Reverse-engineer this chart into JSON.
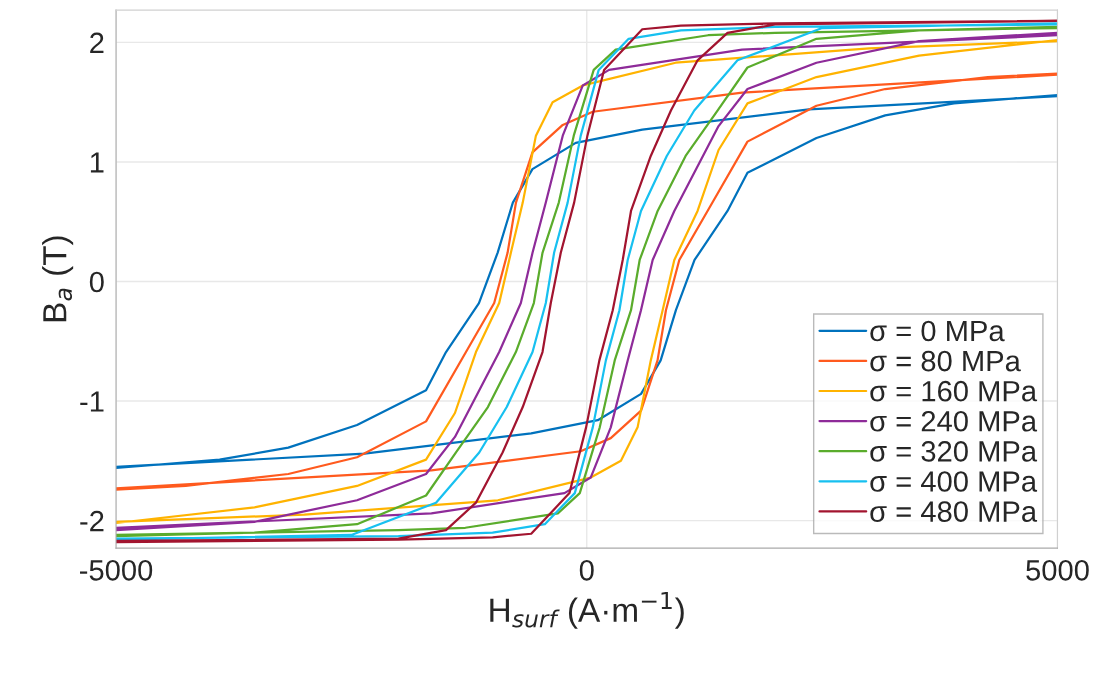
{
  "chart_data": {
    "type": "line",
    "xlabel": "H$_{surf}$ (A·m$^{−1}$)",
    "ylabel": "B$_{a}$ (T)",
    "xlim": [
      -5000,
      5000
    ],
    "ylim": [
      -2.23,
      2.27
    ],
    "xticks": [
      -5000,
      0,
      5000
    ],
    "yticks": [
      -2,
      -1,
      0,
      1,
      2
    ],
    "grid": true,
    "legend": "bottom right",
    "line_style": "solid",
    "marker": "none",
    "series": [
      {
        "name": "σ = 0 MPa",
        "color": "#0072bd",
        "x": [
          -5000,
          -2360,
          -590,
          117,
          577,
          785,
          947,
          1145,
          1495,
          1707,
          2440,
          3170,
          3900,
          5000,
          5000,
          2360,
          590,
          -117,
          -577,
          -785,
          -947,
          -1145,
          -1495,
          -1707,
          -2440,
          -3170,
          -3900,
          -5000
        ],
        "values": [
          -1.55,
          -1.44,
          -1.27,
          -1.16,
          -0.94,
          -0.66,
          -0.24,
          0.18,
          0.59,
          0.91,
          1.2,
          1.39,
          1.49,
          1.56,
          1.55,
          1.44,
          1.27,
          1.16,
          0.94,
          0.66,
          0.24,
          -0.18,
          -0.59,
          -0.91,
          -1.2,
          -1.39,
          -1.49,
          -1.56
        ]
      },
      {
        "name": "σ = 80 MPa",
        "color": "#ff5a1e",
        "x": [
          -5000,
          -1650,
          -64,
          255,
          577,
          752,
          841,
          983,
          1283,
          1707,
          2440,
          3170,
          4260,
          5000,
          5000,
          1650,
          64,
          -255,
          -577,
          -752,
          -841,
          -983,
          -1283,
          -1707,
          -2440,
          -3170,
          -4260,
          -5000
        ],
        "values": [
          -1.73,
          -1.58,
          -1.42,
          -1.31,
          -1.08,
          -0.66,
          -0.24,
          0.18,
          0.59,
          1.17,
          1.47,
          1.61,
          1.71,
          1.74,
          1.73,
          1.58,
          1.42,
          1.31,
          1.08,
          0.66,
          0.24,
          -0.18,
          -0.59,
          -1.17,
          -1.47,
          -1.61,
          -1.71,
          -1.74
        ]
      },
      {
        "name": "σ = 160 MPa",
        "color": "#ffb300",
        "x": [
          -5000,
          -3000,
          -944,
          42,
          363,
          540,
          680,
          806,
          930,
          1177,
          1400,
          1707,
          2440,
          3530,
          5000,
          5000,
          3000,
          944,
          -42,
          -363,
          -540,
          -680,
          -806,
          -930,
          -1177,
          -1400,
          -1707,
          -2440,
          -3530,
          -5000
        ],
        "values": [
          -2.01,
          -1.95,
          -1.83,
          -1.64,
          -1.5,
          -1.22,
          -0.66,
          -0.24,
          0.18,
          0.59,
          1.1,
          1.49,
          1.71,
          1.89,
          2.02,
          2.01,
          1.95,
          1.83,
          1.64,
          1.5,
          1.22,
          0.66,
          0.24,
          -0.18,
          -0.59,
          -1.1,
          -1.49,
          -1.71,
          -1.89,
          -2.02
        ]
      },
      {
        "name": "σ = 240 MPa",
        "color": "#8e2b99",
        "x": [
          -5000,
          -1650,
          -237,
          42,
          255,
          435,
          576,
          700,
          930,
          1400,
          1707,
          2440,
          3530,
          5000,
          5000,
          1650,
          237,
          -42,
          -255,
          -435,
          -576,
          -700,
          -930,
          -1400,
          -1707,
          -2440,
          -3530,
          -5000
        ],
        "values": [
          -2.06,
          -1.94,
          -1.77,
          -1.64,
          -1.22,
          -0.66,
          -0.24,
          0.18,
          0.59,
          1.3,
          1.61,
          1.83,
          2.01,
          2.08,
          2.06,
          1.94,
          1.77,
          1.64,
          1.22,
          0.66,
          0.24,
          -0.18,
          -0.59,
          -1.3,
          -1.61,
          -1.83,
          -2.01,
          -2.08
        ]
      },
      {
        "name": "σ = 320 MPa",
        "color": "#5aac2c",
        "x": [
          -5000,
          -2000,
          -1290,
          -307,
          -74,
          138,
          297,
          470,
          562,
          753,
          1050,
          1389,
          1707,
          2440,
          3530,
          5000,
          5000,
          2000,
          1290,
          307,
          74,
          -138,
          -297,
          -470,
          -562,
          -753,
          -1050,
          -1389,
          -1707,
          -2440,
          -3530,
          -5000
        ],
        "values": [
          -2.12,
          -2.08,
          -2.06,
          -1.94,
          -1.77,
          -1.22,
          -0.66,
          -0.24,
          0.18,
          0.59,
          1.05,
          1.43,
          1.79,
          2.03,
          2.1,
          2.13,
          2.12,
          2.08,
          2.06,
          1.94,
          1.77,
          1.22,
          0.66,
          0.24,
          -0.18,
          -0.59,
          -1.05,
          -1.43,
          -1.79,
          -2.03,
          -2.1,
          -2.13
        ]
      },
      {
        "name": "σ = 400 MPa",
        "color": "#17c0f0",
        "x": [
          -5000,
          -2000,
          -1000,
          -445,
          -127,
          64,
          203,
          347,
          435,
          576,
          850,
          1142,
          1601,
          2500,
          5000,
          5000,
          2000,
          1000,
          445,
          127,
          -64,
          -203,
          -347,
          -435,
          -576,
          -850,
          -1142,
          -1601,
          -2500,
          -5000
        ],
        "values": [
          -2.15,
          -2.13,
          -2.1,
          -2.03,
          -1.77,
          -1.22,
          -0.66,
          -0.24,
          0.18,
          0.59,
          1.05,
          1.43,
          1.85,
          2.12,
          2.16,
          2.15,
          2.13,
          2.1,
          2.03,
          1.77,
          1.22,
          0.66,
          0.24,
          -0.18,
          -0.59,
          -1.05,
          -1.43,
          -1.85,
          -2.12,
          -2.16
        ]
      },
      {
        "name": "σ = 480 MPa",
        "color": "#a2142f",
        "x": [
          -5000,
          -2000,
          -1000,
          -590,
          -184,
          -7,
          134,
          276,
          382,
          470,
          680,
          894,
          1177,
          1495,
          2000,
          5000,
          2000,
          1000,
          590,
          184,
          7,
          -134,
          -276,
          -382,
          -470,
          -680,
          -894,
          -1177,
          -1495,
          -2000,
          -5000
        ],
        "values": [
          -2.18,
          -2.16,
          -2.14,
          -2.11,
          -1.77,
          -1.22,
          -0.66,
          -0.24,
          0.18,
          0.59,
          1.05,
          1.43,
          1.85,
          2.08,
          2.15,
          2.18,
          2.16,
          2.14,
          2.11,
          1.77,
          1.22,
          0.66,
          0.24,
          -0.18,
          -0.59,
          -1.05,
          -1.43,
          -1.85,
          -2.08,
          -2.15,
          -2.17
        ]
      }
    ]
  }
}
